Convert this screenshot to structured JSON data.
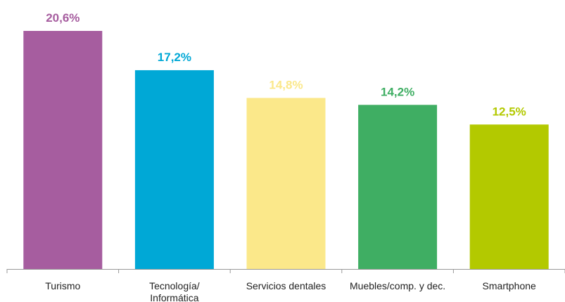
{
  "chart_data": {
    "type": "bar",
    "categories": [
      "Turismo",
      "Tecnología/\nInformática",
      "Servicios dentales",
      "Muebles/comp. y dec.",
      "Smartphone"
    ],
    "values": [
      20.6,
      17.2,
      14.8,
      14.2,
      12.5
    ],
    "value_labels": [
      "20,6%",
      "17,2%",
      "14,8%",
      "14,2%",
      "12,5%"
    ],
    "colors": [
      "#a65d9f",
      "#00a8d6",
      "#fbe88a",
      "#3fae63",
      "#b3c900"
    ]
  }
}
